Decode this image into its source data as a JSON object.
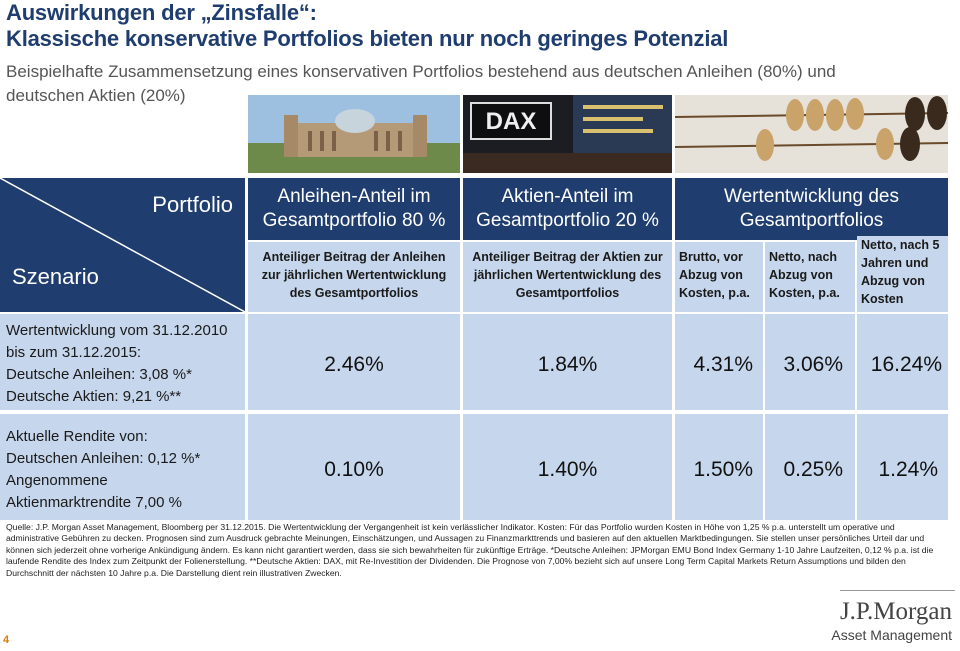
{
  "header": {
    "title_lines": [
      "Auswirkungen der „Zinsfalle“:",
      "Klassische konservative Portfolios bieten nur noch geringes Potenzial"
    ],
    "subtitle_lines": [
      "Beispielhafte Zusammensetzung eines konservativen Portfolios bestehend aus deutschen Anleihen (80%) und",
      "deutschen Aktien (20%)"
    ]
  },
  "table": {
    "corner_top": "Portfolio",
    "corner_bottom": "Szenario",
    "columns": [
      [
        "Anleihen-Anteil im",
        "Gesamtportfolio 80 %"
      ],
      [
        "Aktien-Anteil im",
        "Gesamtportfolio 20 %"
      ],
      [
        "Wertentwicklung des",
        "Gesamtportfolios"
      ]
    ],
    "subheaders": [
      "Anteiliger Beitrag der Anleihen zur jährlichen Wertentwicklung des Gesamtportfolios",
      "Anteiliger Beitrag der Aktien zur jährlichen Wertentwicklung des Gesamtportfolios",
      "Brutto, vor Abzug von Kosten, p.a.",
      "Netto, nach Abzug von Kosten, p.a.",
      "Netto, nach 5 Jahren und Abzug von Kosten"
    ],
    "rows": [
      {
        "scenario": [
          "Wertentwicklung vom 31.12.2010",
          "bis zum 31.12.2015:",
          "Deutsche Anleihen: 3,08 %*",
          "Deutsche Aktien: 9,21 %**"
        ],
        "values": [
          "2.46%",
          "1.84%",
          "4.31%",
          "3.06%",
          "16.24%"
        ]
      },
      {
        "scenario": [
          "Aktuelle Rendite von:",
          "Deutschen Anleihen: 0,12 %*",
          "Angenommene",
          "Aktienmarktrendite 7,00 %"
        ],
        "values": [
          "0.10%",
          "1.40%",
          "1.50%",
          "0.25%",
          "1.24%"
        ]
      }
    ]
  },
  "footnote": "Quelle: J.P. Morgan Asset Management, Bloomberg per 31.12.2015. Die Wertentwicklung der Vergangenheit ist kein verlässlicher Indikator. Kosten: Für das Portfolio wurden Kosten in Höhe von 1,25 % p.a. unterstellt um operative und administrative Gebühren zu decken. Prognosen sind zum Ausdruck gebrachte Meinungen, Einschätzungen, und Aussagen zu Finanzmarkttrends und basieren auf den aktuellen Marktbedingungen. Sie stellen unser persönliches Urteil dar und können sich jederzeit ohne vorherige Ankündigung ändern. Es kann nicht garantiert werden, dass sie sich bewahrheiten für zukünftige Erträge. *Deutsche Anleihen: JPMorgan EMU Bond Index Germany 1-10 Jahre Laufzeiten, 0,12 % p.a. ist die laufende Rendite des Index zum Zeitpunkt der Folienerstellung. **Deutsche Aktien: DAX, mit Re-Investition der Dividenden. Die Prognose von 7,00% bezieht sich auf unsere Long Term Capital Markets Return Assumptions und bilden den Durchschnitt der nächsten 10 Jahre p.a. Die Darstellung dient rein illustrativen Zwecken.",
  "footer": {
    "page": "4",
    "logo": "J.P.Morgan",
    "logo_sub": "Asset Management"
  }
}
